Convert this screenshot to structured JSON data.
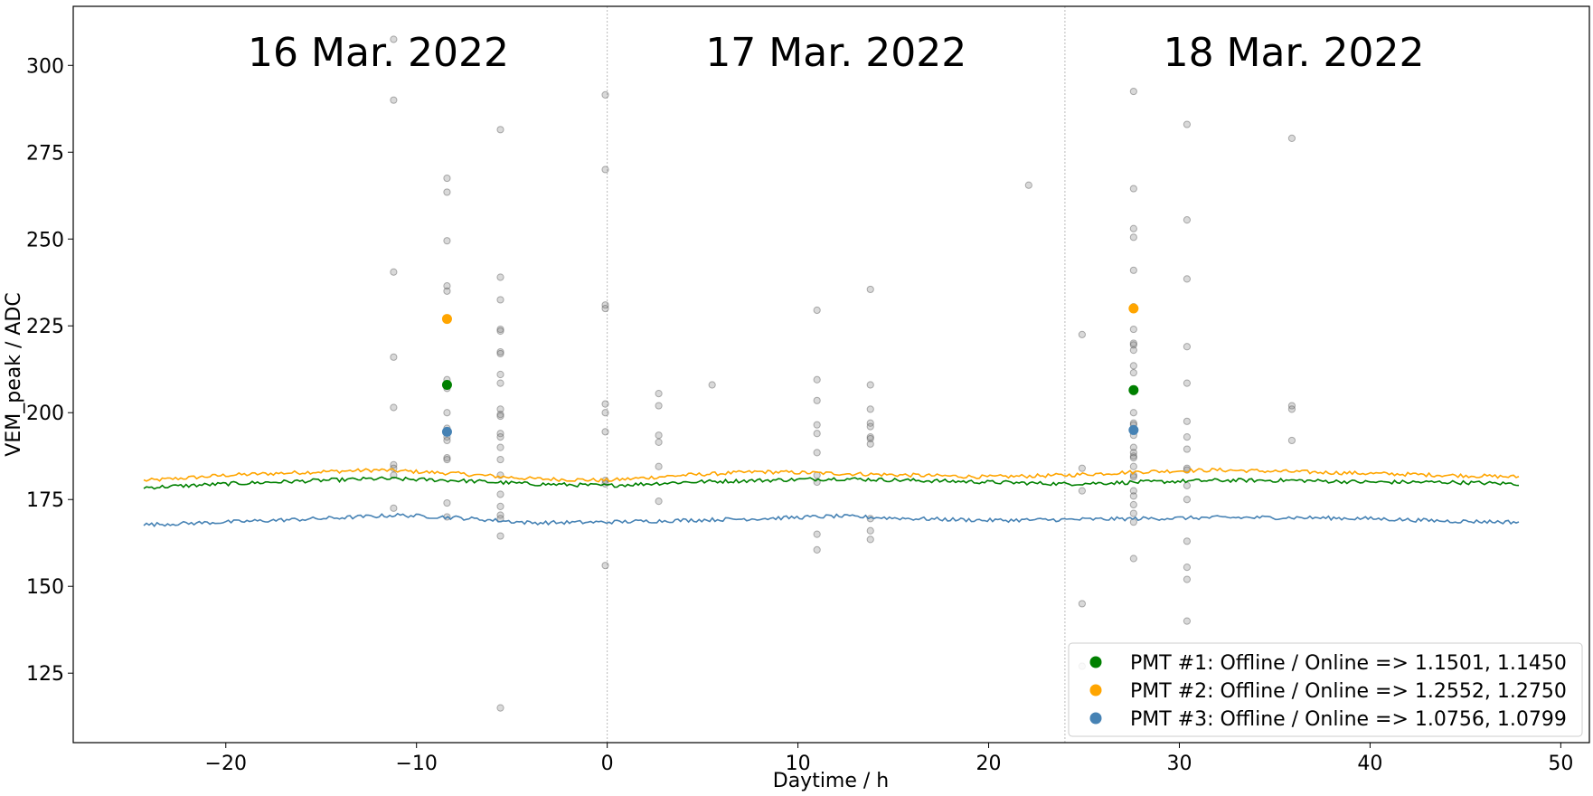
{
  "chart_data": {
    "type": "scatter",
    "xlabel": "Daytime / h",
    "ylabel": "VEM_peak / ADC",
    "xlim": [
      -28,
      51.5
    ],
    "ylim": [
      105,
      317
    ],
    "xticks": [
      -20,
      -10,
      0,
      10,
      20,
      30,
      40,
      50
    ],
    "yticks": [
      125,
      150,
      175,
      200,
      225,
      250,
      275,
      300
    ],
    "day_separators": [
      0,
      24
    ],
    "day_labels": [
      {
        "text": "16 Mar. 2022",
        "x": -12
      },
      {
        "text": "17 Mar. 2022",
        "x": 12
      },
      {
        "text": "18 Mar. 2022",
        "x": 36
      }
    ],
    "legend_position": "lower-right",
    "legend": [
      {
        "label": "PMT #1: Offline / Online => 1.1501, 1.1450",
        "color": "#008000"
      },
      {
        "label": "PMT #2: Offline / Online => 1.2552, 1.2750",
        "color": "#ffa500"
      },
      {
        "label": "PMT #3: Offline / Online => 1.0756, 1.0799",
        "color": "#4682b4"
      }
    ],
    "line_series": [
      {
        "color": "#ffa500",
        "x_start": -24.3,
        "x_end": 47.8,
        "x": [
          -24,
          -20,
          -15,
          -12,
          -8,
          -4,
          0,
          4,
          8,
          12,
          16,
          20,
          24,
          28,
          32,
          36,
          40,
          44,
          47.8
        ],
        "y": [
          180.5,
          182,
          183,
          183.5,
          182.5,
          181,
          180.5,
          182,
          183,
          182.5,
          182,
          181.5,
          182,
          183,
          183.5,
          183,
          182.5,
          182,
          181.5
        ]
      },
      {
        "color": "#008000",
        "x_start": -24.3,
        "x_end": 47.8,
        "x": [
          -24,
          -20,
          -15,
          -12,
          -8,
          -4,
          0,
          4,
          8,
          12,
          16,
          20,
          24,
          28,
          32,
          36,
          40,
          44,
          47.8
        ],
        "y": [
          178.5,
          179.5,
          180.5,
          181,
          180.5,
          179.5,
          179,
          180,
          180.5,
          181,
          180.5,
          180,
          179.5,
          180,
          180.5,
          180.5,
          180,
          180,
          179.5
        ]
      },
      {
        "color": "#4682b4",
        "x_start": -24.3,
        "x_end": 47.8,
        "x": [
          -24,
          -20,
          -15,
          -11,
          -8,
          -4,
          0,
          4,
          8,
          12,
          16,
          20,
          24,
          28,
          32,
          36,
          40,
          44,
          47.8
        ],
        "y": [
          167.8,
          168.5,
          169.5,
          170.5,
          169.8,
          168.3,
          168.5,
          169,
          169.5,
          170.2,
          169.5,
          169,
          169.2,
          169.5,
          169.8,
          169.8,
          169.5,
          168.8,
          168.5
        ]
      }
    ],
    "highlight_points": [
      {
        "x": -8.4,
        "y": 227,
        "color": "#ffa500"
      },
      {
        "x": -8.4,
        "y": 208,
        "color": "#008000"
      },
      {
        "x": -8.4,
        "y": 194.5,
        "color": "#4682b4"
      },
      {
        "x": 27.6,
        "y": 230,
        "color": "#ffa500"
      },
      {
        "x": 27.6,
        "y": 206.5,
        "color": "#008000"
      },
      {
        "x": 27.6,
        "y": 195,
        "color": "#4682b4"
      }
    ],
    "grey_points": [
      {
        "x": -11.2,
        "y": 307.5
      },
      {
        "x": -11.2,
        "y": 290
      },
      {
        "x": -11.2,
        "y": 240.5
      },
      {
        "x": -11.2,
        "y": 216
      },
      {
        "x": -11.2,
        "y": 201.5
      },
      {
        "x": -11.2,
        "y": 185
      },
      {
        "x": -11.2,
        "y": 184
      },
      {
        "x": -11.2,
        "y": 182
      },
      {
        "x": -11.2,
        "y": 172.5
      },
      {
        "x": -8.4,
        "y": 267.5
      },
      {
        "x": -8.4,
        "y": 263.5
      },
      {
        "x": -8.4,
        "y": 249.5
      },
      {
        "x": -8.4,
        "y": 236.5
      },
      {
        "x": -8.4,
        "y": 235
      },
      {
        "x": -8.4,
        "y": 209.5
      },
      {
        "x": -8.4,
        "y": 207
      },
      {
        "x": -8.4,
        "y": 200
      },
      {
        "x": -8.4,
        "y": 195.5
      },
      {
        "x": -8.4,
        "y": 193
      },
      {
        "x": -8.4,
        "y": 192
      },
      {
        "x": -8.4,
        "y": 187
      },
      {
        "x": -8.4,
        "y": 186.5
      },
      {
        "x": -8.4,
        "y": 174
      },
      {
        "x": -8.4,
        "y": 170
      },
      {
        "x": -5.6,
        "y": 281.5
      },
      {
        "x": -5.6,
        "y": 239
      },
      {
        "x": -5.6,
        "y": 232.5
      },
      {
        "x": -5.6,
        "y": 224
      },
      {
        "x": -5.6,
        "y": 223.5
      },
      {
        "x": -5.6,
        "y": 217.5
      },
      {
        "x": -5.6,
        "y": 217
      },
      {
        "x": -5.6,
        "y": 211
      },
      {
        "x": -5.6,
        "y": 208.5
      },
      {
        "x": -5.6,
        "y": 201
      },
      {
        "x": -5.6,
        "y": 199.5
      },
      {
        "x": -5.6,
        "y": 199
      },
      {
        "x": -5.6,
        "y": 194
      },
      {
        "x": -5.6,
        "y": 193
      },
      {
        "x": -5.6,
        "y": 190
      },
      {
        "x": -5.6,
        "y": 186.5
      },
      {
        "x": -5.6,
        "y": 182
      },
      {
        "x": -5.6,
        "y": 176.5
      },
      {
        "x": -5.6,
        "y": 173
      },
      {
        "x": -5.6,
        "y": 170.5
      },
      {
        "x": -5.6,
        "y": 169.5
      },
      {
        "x": -5.6,
        "y": 164.5
      },
      {
        "x": -5.6,
        "y": 115
      },
      {
        "x": -0.1,
        "y": 291.5
      },
      {
        "x": -0.1,
        "y": 270
      },
      {
        "x": -0.1,
        "y": 231
      },
      {
        "x": -0.1,
        "y": 230
      },
      {
        "x": -0.1,
        "y": 202.5
      },
      {
        "x": -0.1,
        "y": 200
      },
      {
        "x": -0.1,
        "y": 194.5
      },
      {
        "x": -0.1,
        "y": 180.5
      },
      {
        "x": -0.1,
        "y": 179.5
      },
      {
        "x": -0.1,
        "y": 156
      },
      {
        "x": 2.7,
        "y": 205.5
      },
      {
        "x": 2.7,
        "y": 202
      },
      {
        "x": 2.7,
        "y": 193.5
      },
      {
        "x": 2.7,
        "y": 191.5
      },
      {
        "x": 2.7,
        "y": 184.5
      },
      {
        "x": 2.7,
        "y": 174.5
      },
      {
        "x": 5.5,
        "y": 208
      },
      {
        "x": 11,
        "y": 229.5
      },
      {
        "x": 11,
        "y": 209.5
      },
      {
        "x": 11,
        "y": 203.5
      },
      {
        "x": 11,
        "y": 196.5
      },
      {
        "x": 11,
        "y": 194
      },
      {
        "x": 11,
        "y": 188.5
      },
      {
        "x": 11,
        "y": 182
      },
      {
        "x": 11,
        "y": 180
      },
      {
        "x": 11,
        "y": 165
      },
      {
        "x": 11,
        "y": 160.5
      },
      {
        "x": 13.8,
        "y": 235.5
      },
      {
        "x": 13.8,
        "y": 208
      },
      {
        "x": 13.8,
        "y": 201
      },
      {
        "x": 13.8,
        "y": 197
      },
      {
        "x": 13.8,
        "y": 196
      },
      {
        "x": 13.8,
        "y": 193
      },
      {
        "x": 13.8,
        "y": 192.5
      },
      {
        "x": 13.8,
        "y": 191
      },
      {
        "x": 13.8,
        "y": 169.5
      },
      {
        "x": 13.8,
        "y": 166
      },
      {
        "x": 13.8,
        "y": 163.5
      },
      {
        "x": 22.1,
        "y": 265.5
      },
      {
        "x": 24.9,
        "y": 222.5
      },
      {
        "x": 24.9,
        "y": 184
      },
      {
        "x": 24.9,
        "y": 177.5
      },
      {
        "x": 24.9,
        "y": 145
      },
      {
        "x": 24.9,
        "y": 127
      },
      {
        "x": 27.6,
        "y": 292.5
      },
      {
        "x": 27.6,
        "y": 264.5
      },
      {
        "x": 27.6,
        "y": 253
      },
      {
        "x": 27.6,
        "y": 250.5
      },
      {
        "x": 27.6,
        "y": 241
      },
      {
        "x": 27.6,
        "y": 230.5
      },
      {
        "x": 27.6,
        "y": 224
      },
      {
        "x": 27.6,
        "y": 220
      },
      {
        "x": 27.6,
        "y": 219.5
      },
      {
        "x": 27.6,
        "y": 218
      },
      {
        "x": 27.6,
        "y": 213.5
      },
      {
        "x": 27.6,
        "y": 211.5
      },
      {
        "x": 27.6,
        "y": 206
      },
      {
        "x": 27.6,
        "y": 200
      },
      {
        "x": 27.6,
        "y": 197
      },
      {
        "x": 27.6,
        "y": 196.5
      },
      {
        "x": 27.6,
        "y": 195
      },
      {
        "x": 27.6,
        "y": 193.5
      },
      {
        "x": 27.6,
        "y": 190
      },
      {
        "x": 27.6,
        "y": 188.5
      },
      {
        "x": 27.6,
        "y": 187.5
      },
      {
        "x": 27.6,
        "y": 187
      },
      {
        "x": 27.6,
        "y": 184.5
      },
      {
        "x": 27.6,
        "y": 182
      },
      {
        "x": 27.6,
        "y": 181.5
      },
      {
        "x": 27.6,
        "y": 177.5
      },
      {
        "x": 27.6,
        "y": 176
      },
      {
        "x": 27.6,
        "y": 173.5
      },
      {
        "x": 27.6,
        "y": 171
      },
      {
        "x": 27.6,
        "y": 168.5
      },
      {
        "x": 27.6,
        "y": 158
      },
      {
        "x": 30.4,
        "y": 283
      },
      {
        "x": 30.4,
        "y": 255.5
      },
      {
        "x": 30.4,
        "y": 238.5
      },
      {
        "x": 30.4,
        "y": 219
      },
      {
        "x": 30.4,
        "y": 208.5
      },
      {
        "x": 30.4,
        "y": 197.5
      },
      {
        "x": 30.4,
        "y": 193
      },
      {
        "x": 30.4,
        "y": 189.5
      },
      {
        "x": 30.4,
        "y": 184
      },
      {
        "x": 30.4,
        "y": 183.5
      },
      {
        "x": 30.4,
        "y": 179
      },
      {
        "x": 30.4,
        "y": 175
      },
      {
        "x": 30.4,
        "y": 163
      },
      {
        "x": 30.4,
        "y": 155.5
      },
      {
        "x": 30.4,
        "y": 152
      },
      {
        "x": 30.4,
        "y": 140
      },
      {
        "x": 35.9,
        "y": 279
      },
      {
        "x": 35.9,
        "y": 202
      },
      {
        "x": 35.9,
        "y": 201
      },
      {
        "x": 35.9,
        "y": 192
      }
    ]
  }
}
